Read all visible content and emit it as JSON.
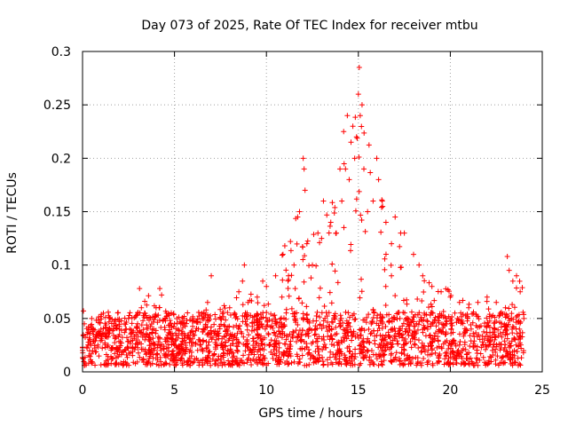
{
  "chart_data": {
    "type": "scatter",
    "title": "Day 073 of 2025, Rate Of TEC Index for receiver mtbu",
    "xlabel": "GPS time / hours",
    "ylabel": "ROTI / TECUs",
    "xlim": [
      0,
      25
    ],
    "ylim": [
      0,
      0.3
    ],
    "xticks": [
      0,
      5,
      10,
      15,
      20,
      25
    ],
    "yticks": [
      0,
      0.05,
      0.1,
      0.15,
      0.2,
      0.25,
      0.3
    ],
    "xtick_labels": [
      "0",
      "5",
      "10",
      "15",
      "20",
      "25"
    ],
    "ytick_labels": [
      "0",
      "0.05",
      "0.1",
      "0.15",
      "0.2",
      "0.25",
      "0.3"
    ],
    "grid": true,
    "marker": "+",
    "marker_color": "#ff0000",
    "series": [
      {
        "name": "ROTI",
        "envelope_hours": [
          0,
          1,
          2,
          3,
          4,
          5,
          6,
          7,
          8,
          9,
          10,
          11,
          12,
          13,
          14,
          15,
          16,
          17,
          18,
          19,
          20,
          21,
          22,
          23,
          24
        ],
        "envelope_roti": [
          0.03,
          0.05,
          0.05,
          0.06,
          0.07,
          0.05,
          0.05,
          0.06,
          0.06,
          0.07,
          0.08,
          0.12,
          0.15,
          0.13,
          0.2,
          0.25,
          0.18,
          0.12,
          0.1,
          0.08,
          0.07,
          0.06,
          0.07,
          0.05,
          0.09
        ],
        "points": [
          [
            0.0,
            0.02
          ],
          [
            0.05,
            0.057
          ],
          [
            0.1,
            0.045
          ],
          [
            0.5,
            0.05
          ],
          [
            1.0,
            0.04
          ],
          [
            1.5,
            0.05
          ],
          [
            2.0,
            0.04
          ],
          [
            2.5,
            0.05
          ],
          [
            3.0,
            0.055
          ],
          [
            3.1,
            0.078
          ],
          [
            3.2,
            0.06
          ],
          [
            4.0,
            0.06
          ],
          [
            4.2,
            0.078
          ],
          [
            4.3,
            0.072
          ],
          [
            4.5,
            0.05
          ],
          [
            5.0,
            0.045
          ],
          [
            5.5,
            0.05
          ],
          [
            6.0,
            0.05
          ],
          [
            6.5,
            0.05
          ],
          [
            6.8,
            0.065
          ],
          [
            7.0,
            0.09
          ],
          [
            7.5,
            0.05
          ],
          [
            8.0,
            0.06
          ],
          [
            8.5,
            0.075
          ],
          [
            8.7,
            0.085
          ],
          [
            8.8,
            0.1
          ],
          [
            9.0,
            0.065
          ],
          [
            9.5,
            0.07
          ],
          [
            9.8,
            0.085
          ],
          [
            10.0,
            0.08
          ],
          [
            10.5,
            0.09
          ],
          [
            10.9,
            0.11
          ],
          [
            11.0,
            0.118
          ],
          [
            11.2,
            0.09
          ],
          [
            11.5,
            0.1
          ],
          [
            11.7,
            0.145
          ],
          [
            11.8,
            0.15
          ],
          [
            12.0,
            0.2
          ],
          [
            12.05,
            0.19
          ],
          [
            12.1,
            0.17
          ],
          [
            12.2,
            0.12
          ],
          [
            12.5,
            0.1
          ],
          [
            12.8,
            0.13
          ],
          [
            13.0,
            0.125
          ],
          [
            13.1,
            0.16
          ],
          [
            13.5,
            0.14
          ],
          [
            13.8,
            0.13
          ],
          [
            14.0,
            0.19
          ],
          [
            14.1,
            0.16
          ],
          [
            14.2,
            0.225
          ],
          [
            14.3,
            0.19
          ],
          [
            14.4,
            0.24
          ],
          [
            14.5,
            0.18
          ],
          [
            14.6,
            0.215
          ],
          [
            14.7,
            0.23
          ],
          [
            14.8,
            0.2
          ],
          [
            14.9,
            0.22
          ],
          [
            15.0,
            0.26
          ],
          [
            15.05,
            0.285
          ],
          [
            15.1,
            0.24
          ],
          [
            15.2,
            0.25
          ],
          [
            15.3,
            0.19
          ],
          [
            15.5,
            0.15
          ],
          [
            15.8,
            0.16
          ],
          [
            16.0,
            0.2
          ],
          [
            16.1,
            0.18
          ],
          [
            16.3,
            0.16
          ],
          [
            16.5,
            0.14
          ],
          [
            16.8,
            0.12
          ],
          [
            17.0,
            0.145
          ],
          [
            17.3,
            0.13
          ],
          [
            17.5,
            0.13
          ],
          [
            18.0,
            0.11
          ],
          [
            18.3,
            0.1
          ],
          [
            18.5,
            0.09
          ],
          [
            19.0,
            0.08
          ],
          [
            19.5,
            0.075
          ],
          [
            20.0,
            0.07
          ],
          [
            20.5,
            0.065
          ],
          [
            21.0,
            0.06
          ],
          [
            21.5,
            0.065
          ],
          [
            22.0,
            0.07
          ],
          [
            22.5,
            0.065
          ],
          [
            23.0,
            0.06
          ],
          [
            23.1,
            0.108
          ],
          [
            23.2,
            0.095
          ],
          [
            23.4,
            0.085
          ],
          [
            23.6,
            0.09
          ],
          [
            23.8,
            0.075
          ],
          [
            24.0,
            0.05
          ]
        ]
      }
    ]
  }
}
